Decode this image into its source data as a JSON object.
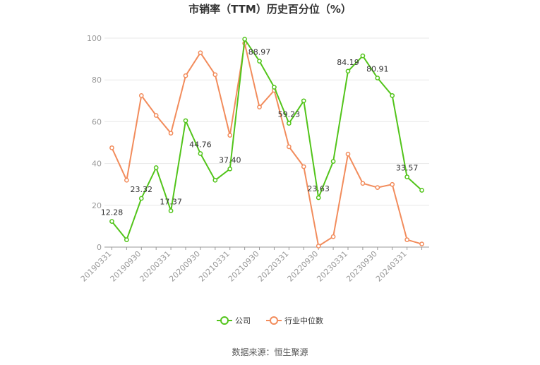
{
  "chart_data": {
    "type": "line",
    "title": "市销率（TTM）历史百分位（%）",
    "ylim": [
      0,
      100
    ],
    "yticks": [
      0,
      20,
      40,
      60,
      80,
      100
    ],
    "grid": true,
    "legend_position": "bottom",
    "x": [
      "20190331",
      "20190630",
      "20190930",
      "20191231",
      "20200331",
      "20200630",
      "20200930",
      "20201231",
      "20210331",
      "20210630",
      "20210930",
      "20211231",
      "20220331",
      "20220630",
      "20220930",
      "20221231",
      "20230331",
      "20230630",
      "20230930",
      "20231231",
      "20240331",
      "20240630"
    ],
    "x_tick_labels": [
      "20190331",
      "20190930",
      "20200331",
      "20200930",
      "20210331",
      "20210930",
      "20220331",
      "20220930",
      "20230331",
      "20230930",
      "20240331"
    ],
    "series": [
      {
        "name": "公司",
        "color": "#52c41a",
        "values": [
          12.28,
          3.5,
          23.32,
          38,
          17.37,
          60.5,
          44.76,
          32,
          37.4,
          99.5,
          88.97,
          76.5,
          59.23,
          70,
          23.63,
          41,
          84.19,
          91.5,
          80.91,
          72.5,
          33.57,
          27.2
        ],
        "labels": [
          "12.28",
          "",
          "23.32",
          "",
          "17.37",
          "",
          "44.76",
          "",
          "37.40",
          "",
          "88.97",
          "",
          "59.23",
          "",
          "23.63",
          "",
          "84.19",
          "",
          "80.91",
          "",
          "33.57",
          ""
        ]
      },
      {
        "name": "行业中位数",
        "color": "#f28c5c",
        "values": [
          47.5,
          32,
          72.5,
          63,
          54.5,
          82,
          93,
          82.5,
          53.5,
          97.5,
          67,
          75,
          48,
          38.5,
          0.5,
          5,
          44.5,
          30.5,
          28.5,
          30,
          3.5,
          1.5
        ],
        "labels": []
      }
    ]
  },
  "source_text": "数据来源：恒生聚源"
}
